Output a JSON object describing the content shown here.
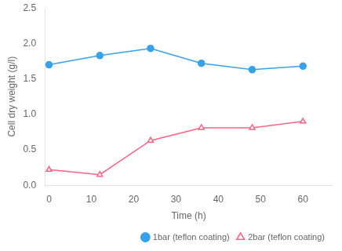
{
  "chart_data": {
    "type": "line",
    "x_label": "Time (h)",
    "y_label": "Cell dry weight (g/l)",
    "x": [
      0,
      12,
      24,
      36,
      48,
      60
    ],
    "series": [
      {
        "name": "1bar (teflon coating)",
        "values": [
          1.7,
          1.83,
          1.93,
          1.72,
          1.63,
          1.68
        ],
        "marker": "circle"
      },
      {
        "name": "2bar (teflon coating)",
        "values": [
          0.22,
          0.15,
          0.63,
          0.81,
          0.81,
          0.9
        ],
        "marker": "triangle_open"
      }
    ],
    "xlim": [
      -1,
      67
    ],
    "xticks": [
      0,
      10,
      20,
      30,
      40,
      50,
      60
    ],
    "ylim": [
      0.0,
      2.5
    ],
    "yticks": [
      {
        "value": 0.0,
        "label": "0.0"
      },
      0.5,
      {
        "value": 1.0,
        "label": "1.0"
      },
      1.5,
      {
        "value": 2.0,
        "label": "2.0"
      },
      2.5
    ],
    "grid": false,
    "legend": "lower right"
  }
}
